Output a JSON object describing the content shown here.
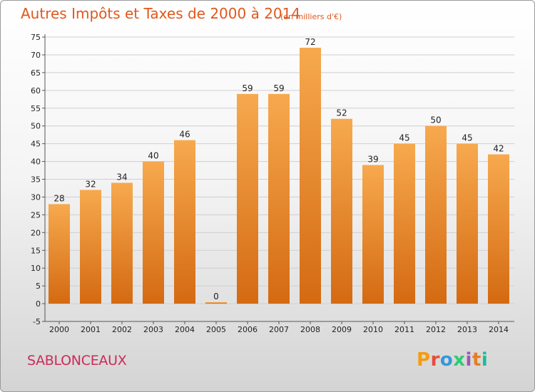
{
  "header": {
    "title": "Autres Impôts et Taxes de 2000 à 2014",
    "subtitle": "(en milliers d'€)"
  },
  "footer": {
    "place": "SABLONCEAUX",
    "brand": "Proxiti",
    "brand_colors": [
      "#f39c12",
      "#e74c3c",
      "#3498db",
      "#2ecc71",
      "#9b59b6",
      "#e67e22",
      "#1abc9c"
    ]
  },
  "colors": {
    "bar_light": "#f7a94e",
    "bar_dark": "#d46a12",
    "title": "#e0581c",
    "place": "#cc2a5a",
    "grid": "#cfcfcf"
  },
  "chart_data": {
    "type": "bar",
    "title": "Autres Impôts et Taxes de 2000 à 2014",
    "subtitle": "(en milliers d'€)",
    "categories": [
      "2000",
      "2001",
      "2002",
      "2003",
      "2004",
      "2005",
      "2006",
      "2007",
      "2008",
      "2009",
      "2010",
      "2011",
      "2012",
      "2013",
      "2014"
    ],
    "values": [
      28,
      32,
      34,
      40,
      46,
      0,
      59,
      59,
      72,
      52,
      39,
      45,
      50,
      45,
      42
    ],
    "value_labels": [
      "28",
      "32",
      "34",
      "40",
      "46",
      "0",
      "59",
      "59",
      "72",
      "52",
      "39",
      "45",
      "50",
      "45",
      "42"
    ],
    "yticks": [
      "-5",
      "0",
      "5",
      "10",
      "15",
      "20",
      "25",
      "30",
      "35",
      "40",
      "45",
      "50",
      "55",
      "60",
      "65",
      "70",
      "75"
    ],
    "ylim": [
      -5,
      75
    ],
    "grid": true,
    "xlabel": "",
    "ylabel": ""
  }
}
